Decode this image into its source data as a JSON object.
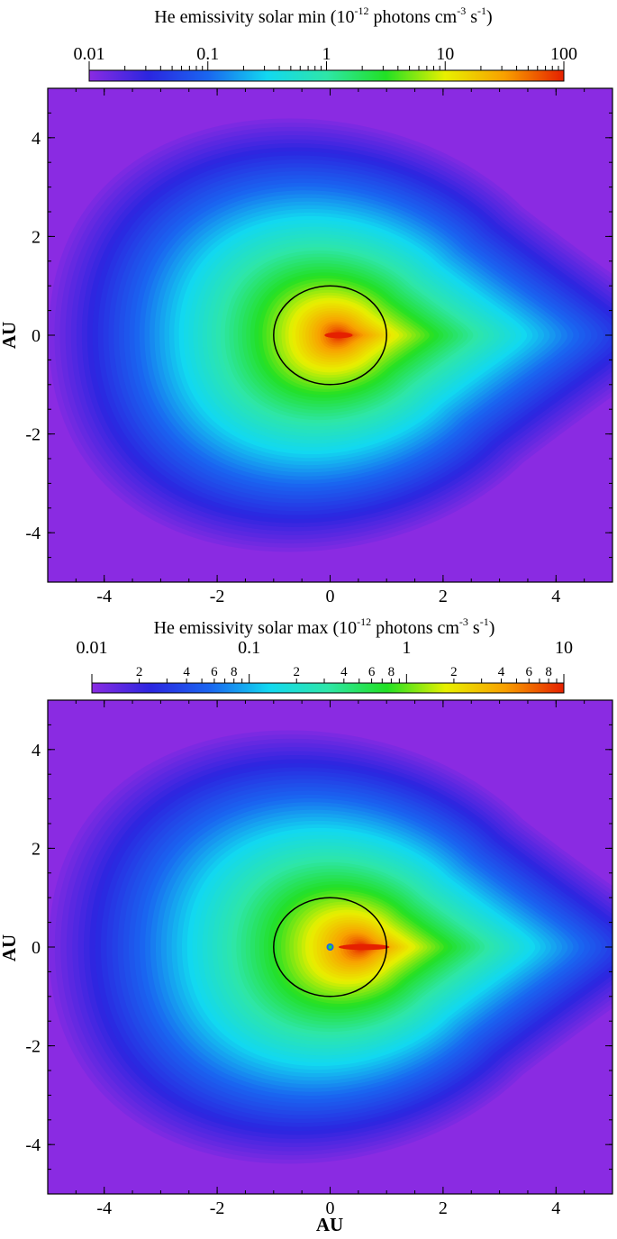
{
  "chart_data": [
    {
      "type": "heatmap",
      "panel": "top",
      "title": "He emissivity solar min",
      "unit": "10-12 photons cm-3 s-1",
      "colorbar": {
        "scale": "log",
        "range": [
          0.01,
          100
        ],
        "ticks": [
          "0.01",
          "0.1",
          "1",
          "10",
          "100"
        ],
        "minor_ticks": [],
        "colormap": [
          "#8a2be2",
          "#2b26e0",
          "#1a66f0",
          "#12d8f0",
          "#2ee6a8",
          "#22e024",
          "#e8f000",
          "#f8a000",
          "#e52000"
        ]
      },
      "x_axis": {
        "label": "",
        "range": [
          -5,
          5
        ],
        "ticks": [
          "-4",
          "-2",
          "0",
          "2",
          "4"
        ]
      },
      "y_axis": {
        "label": "AU",
        "range": [
          -5,
          5
        ],
        "ticks": [
          "4",
          "2",
          "0",
          "-2",
          "-4"
        ]
      },
      "circle_radius_au": 1,
      "peak": {
        "x": 0.15,
        "y": 0,
        "value": 100
      },
      "shape": "teardrop elongated toward +x (downwind cone)"
    },
    {
      "type": "heatmap",
      "panel": "bottom",
      "title": "He emissivity solar max",
      "unit": "10-12 photons cm-3 s-1",
      "colorbar": {
        "scale": "log",
        "range": [
          0.01,
          10
        ],
        "ticks": [
          "0.01",
          "0.1",
          "1",
          "10"
        ],
        "minor_ticks": [
          "2",
          "4",
          "6",
          "8",
          "2",
          "4",
          "6",
          "8",
          "2",
          "4",
          "6",
          "8"
        ],
        "colormap": [
          "#8a2be2",
          "#2b26e0",
          "#1a66f0",
          "#12d8f0",
          "#2ee6a8",
          "#22e024",
          "#e8f000",
          "#f8a000",
          "#e52000"
        ]
      },
      "x_axis": {
        "label": "AU",
        "range": [
          -5,
          5
        ],
        "ticks": [
          "-4",
          "-2",
          "0",
          "2",
          "4"
        ]
      },
      "y_axis": {
        "label": "AU",
        "range": [
          -5,
          5
        ],
        "ticks": [
          "4",
          "2",
          "0",
          "-2",
          "-4"
        ]
      },
      "circle_radius_au": 1,
      "peak": {
        "x": 0.6,
        "y": 0,
        "value": 10
      },
      "shape": "teardrop elongated toward +x (downwind cone), small depleted spot at origin"
    }
  ],
  "labels": {
    "top_title": "He emissivity solar min (10",
    "bottom_title": "He emissivity solar max (10",
    "exp_12": "-12",
    "photons": " photons cm",
    "exp_3": "-3",
    "s": " s",
    "exp_1": "-1",
    "close": ")",
    "ylabel_top": "AU",
    "ylabel_bottom": "AU",
    "xlabel_bottom": "AU"
  }
}
